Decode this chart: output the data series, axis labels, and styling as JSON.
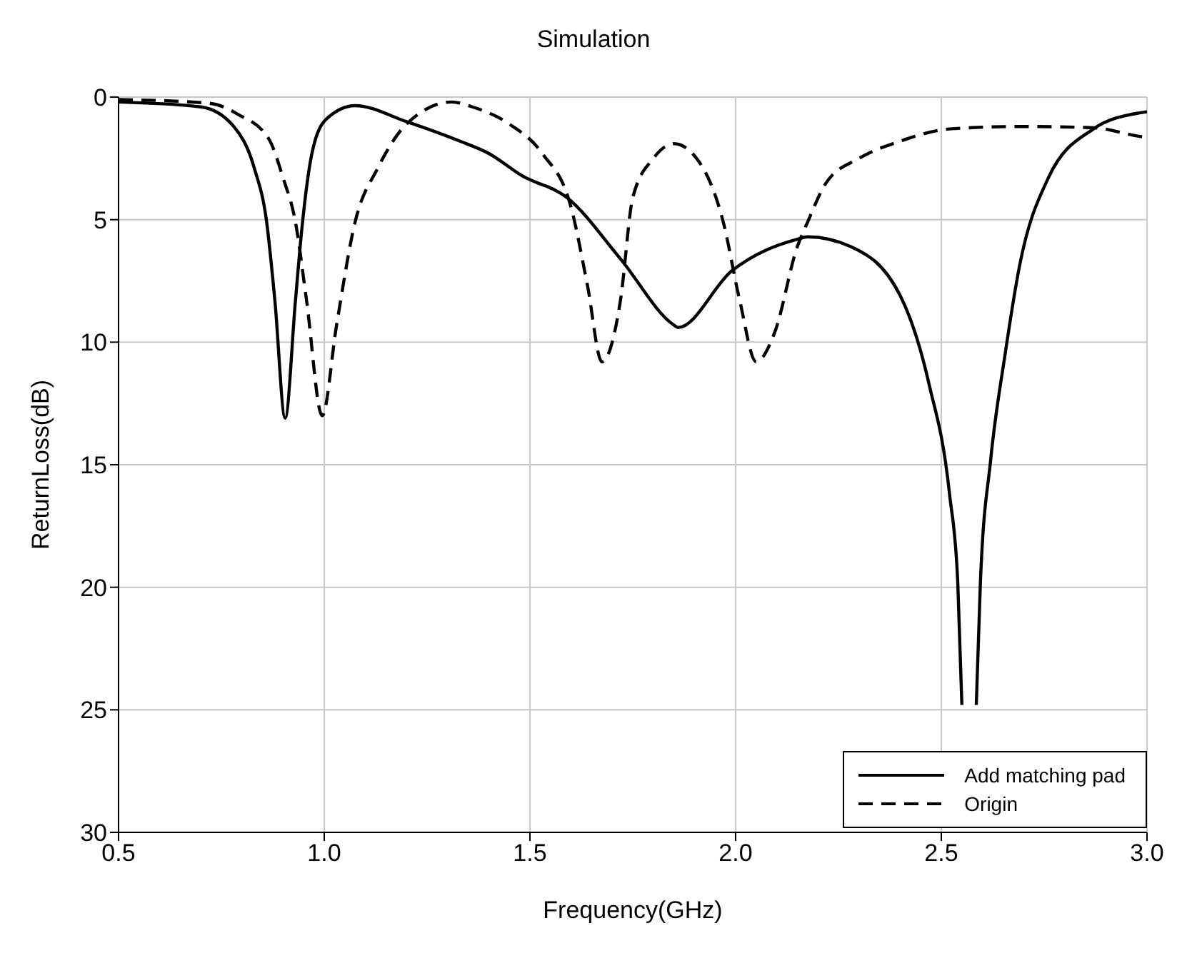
{
  "chart_data": {
    "type": "line",
    "title": "Simulation",
    "xlabel": "Frequency(GHz)",
    "ylabel": "ReturnLoss(dB)",
    "xlim": [
      0.5,
      3.0
    ],
    "xticks": [
      0.5,
      {
        "value": 1,
        "label": "1.0"
      },
      1.5,
      {
        "value": 2,
        "label": "2.0"
      },
      2.5,
      {
        "value": 3,
        "label": "3.0"
      }
    ],
    "ylim": [
      30,
      0
    ],
    "yticks": [
      0,
      5,
      10,
      15,
      20,
      25,
      30
    ],
    "grid": true,
    "legend": "bottom right",
    "series": [
      {
        "name": "Add matching pad",
        "color": "#000000",
        "line_style": "solid",
        "x": [
          0.5,
          0.7,
          0.78,
          0.83,
          0.86,
          0.88,
          0.905,
          0.93,
          0.946,
          0.97,
          1.005,
          1.075,
          1.2,
          1.33,
          1.4,
          1.48,
          1.59,
          1.72,
          1.85,
          1.86,
          1.99,
          2.15,
          2.175,
          2.28,
          2.4,
          2.47,
          2.52,
          2.54,
          2.55,
          2.57,
          2.585,
          2.595,
          2.62,
          2.655,
          2.69,
          2.76,
          2.87,
          2.98,
          3.0
        ],
        "values": [
          0.2,
          0.4,
          1.2,
          2.9,
          5.1,
          8.3,
          13.1,
          8.3,
          5.3,
          2.3,
          0.9,
          0.35,
          1.0,
          1.8,
          2.3,
          3.2,
          4.1,
          6.6,
          9.3,
          9.4,
          7.1,
          5.8,
          5.7,
          6.1,
          8.1,
          11.7,
          16.2,
          19.8,
          24.8,
          null,
          24.8,
          19.8,
          14.8,
          10.5,
          6.9,
          3.3,
          1.3,
          0.65,
          0.6
        ]
      },
      {
        "name": "Origin",
        "color": "#000000",
        "line_style": "dashed",
        "x": [
          0.5,
          0.72,
          0.79,
          0.865,
          0.9,
          0.93,
          0.957,
          0.995,
          1.03,
          1.075,
          1.13,
          1.2,
          1.31,
          1.36,
          1.45,
          1.53,
          1.6,
          1.64,
          1.675,
          1.72,
          1.75,
          1.8,
          1.85,
          1.905,
          1.97,
          2.01,
          2.05,
          2.095,
          2.15,
          2.175,
          2.22,
          2.3,
          2.4,
          2.52,
          2.69,
          2.87,
          2.98,
          3.0
        ],
        "values": [
          0.1,
          0.25,
          0.7,
          1.7,
          3.3,
          5.1,
          8.3,
          13.0,
          9.3,
          5.1,
          2.9,
          1.1,
          0.2,
          0.4,
          1.1,
          2.3,
          4.5,
          7.7,
          10.8,
          8.3,
          4.1,
          2.5,
          1.9,
          2.5,
          5.1,
          8.3,
          10.8,
          9.6,
          6.1,
          5.1,
          3.5,
          2.5,
          1.8,
          1.3,
          1.2,
          1.25,
          1.6,
          1.65
        ]
      }
    ]
  }
}
